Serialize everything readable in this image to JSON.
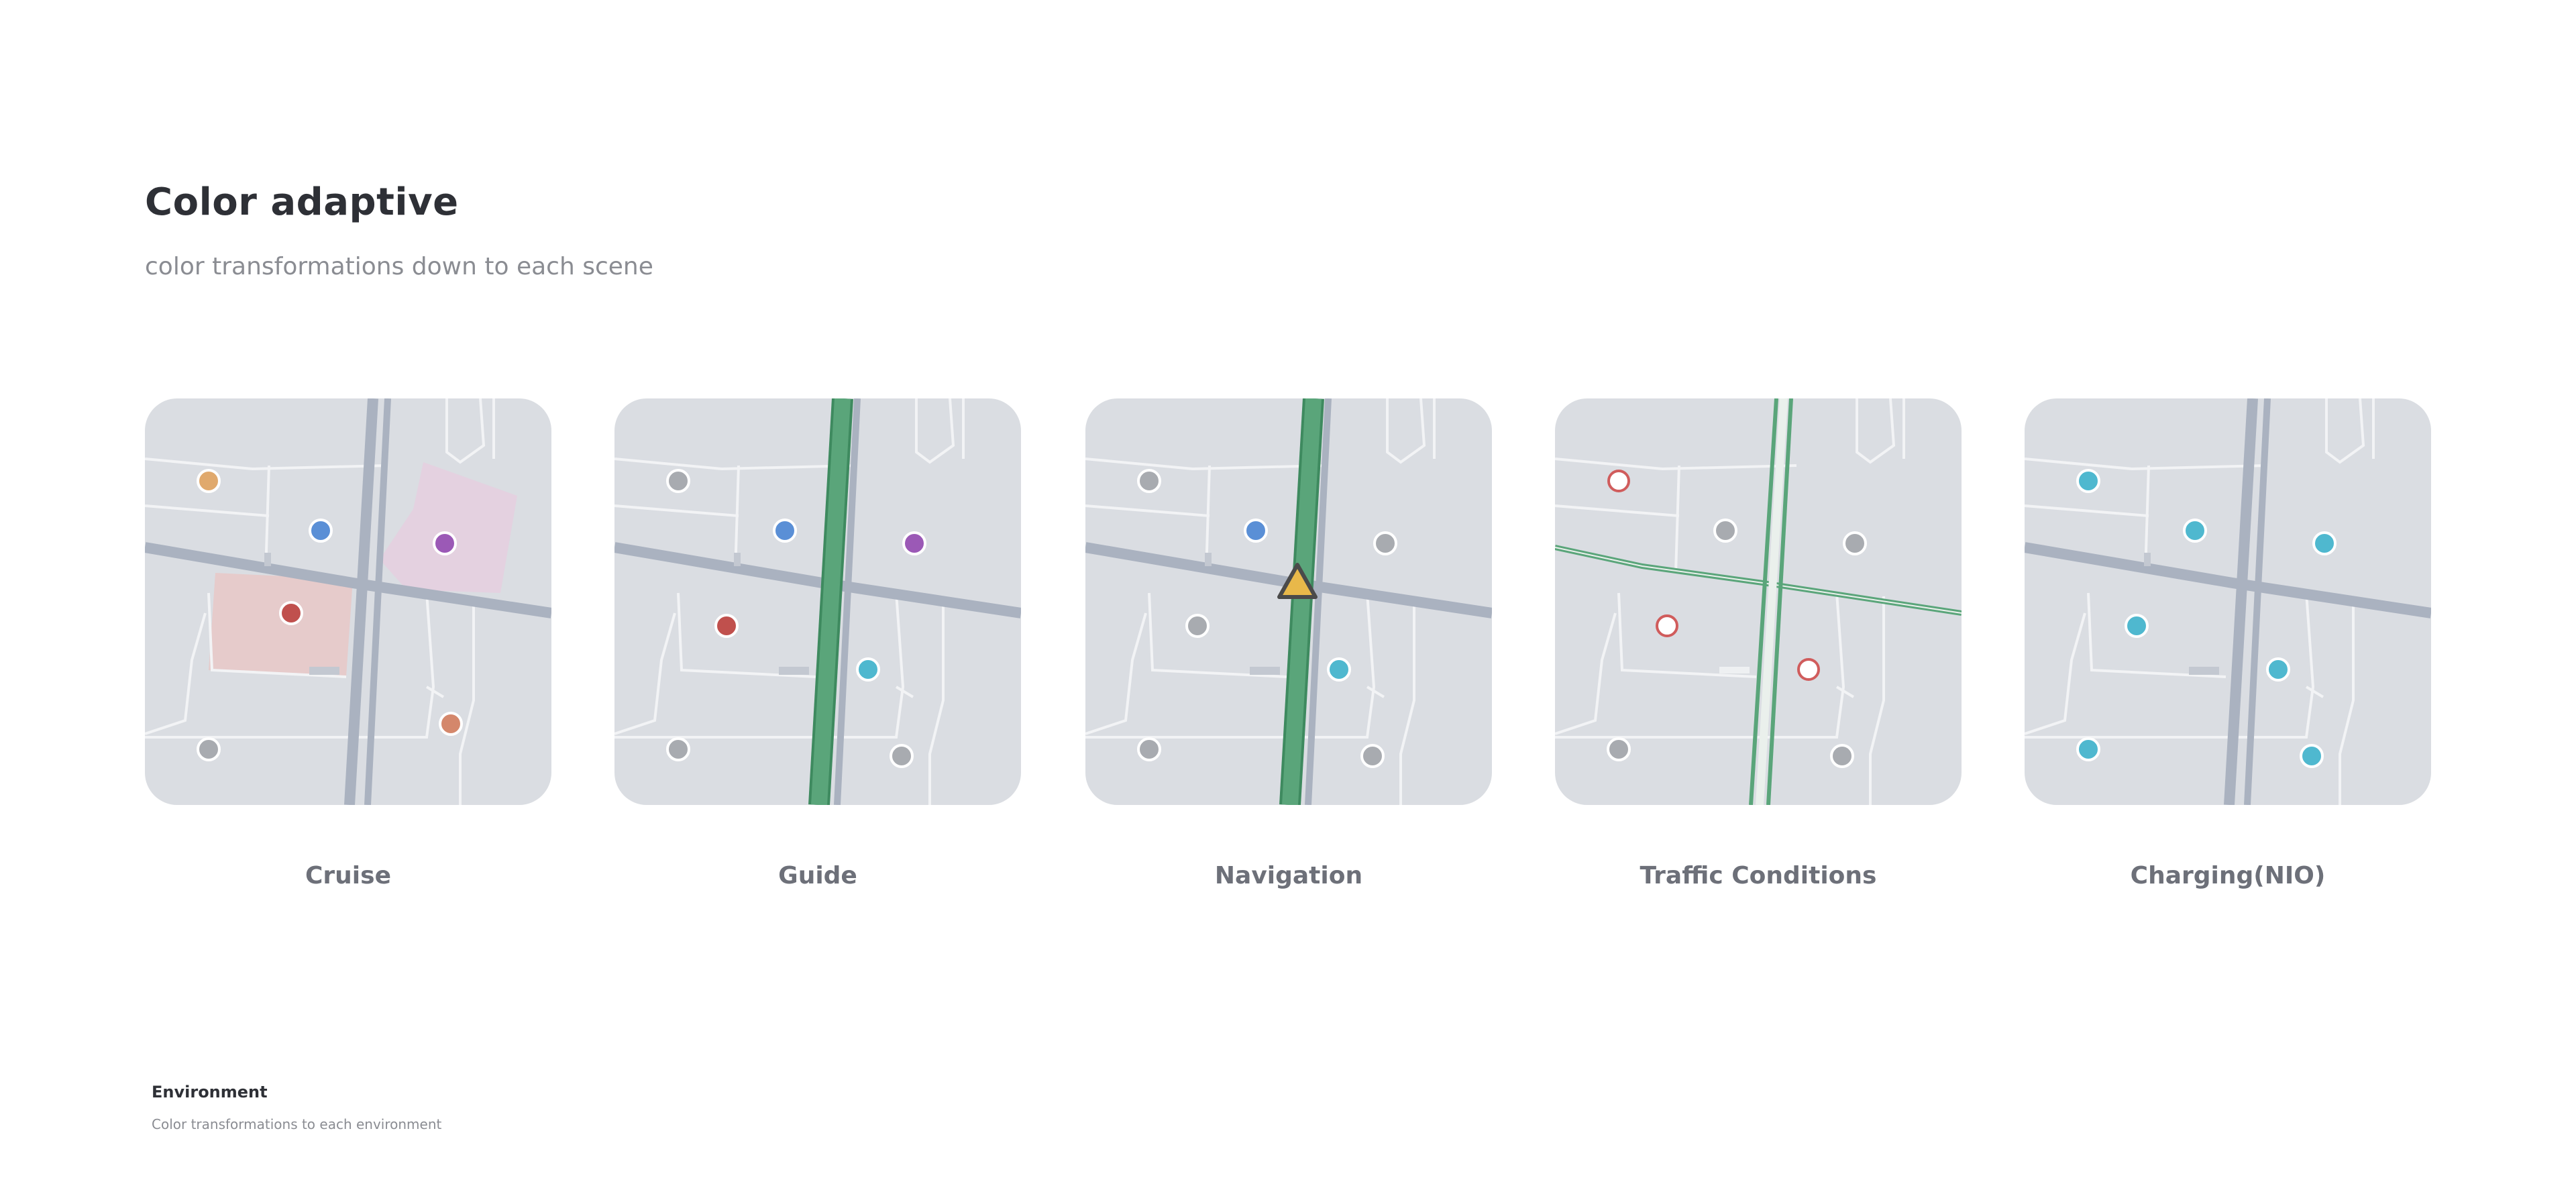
{
  "header": {
    "title": "Color adaptive",
    "subtitle": "color transformations down to each scene"
  },
  "scenes": [
    {
      "label": "Cruise",
      "highlight": "zones",
      "poi_style": "category",
      "poi_colors": [
        "#e0a96d",
        "#5a8fd6",
        "#9b59b6",
        "#c0504d",
        "#a8abb0",
        "#d4876b"
      ]
    },
    {
      "label": "Guide",
      "highlight": "route",
      "poi_style": "category",
      "poi_colors": [
        "#a8abb0",
        "#5a8fd6",
        "#9b59b6",
        "#c0504d",
        "#4fb8cf",
        "#a8abb0",
        "#a8abb0"
      ]
    },
    {
      "label": "Navigation",
      "highlight": "route-with-vehicle",
      "poi_style": "muted",
      "poi_colors": [
        "#a8abb0",
        "#5a8fd6",
        "#a8abb0",
        "#a8abb0",
        "#4fb8cf",
        "#a8abb0",
        "#a8abb0"
      ]
    },
    {
      "label": "Traffic Conditions",
      "highlight": "traffic-lines",
      "poi_style": "incident-rings",
      "poi_colors": [
        "#d05c5c",
        "#a8abb0",
        "#a8abb0",
        "#d05c5c",
        "#d05c5c",
        "#a8abb0",
        "#a8abb0"
      ]
    },
    {
      "label": "Charging(NIO)",
      "highlight": "none",
      "poi_style": "charging",
      "poi_colors": [
        "#4fb8cf",
        "#4fb8cf",
        "#4fb8cf",
        "#4fb8cf",
        "#4fb8cf",
        "#4fb8cf",
        "#4fb8cf"
      ]
    }
  ],
  "colors": {
    "map_background": "#dadde2",
    "road_main": "#aab2c0",
    "road_minor": "#f2f3f5",
    "route_green": "#5aa57a",
    "route_green_dark": "#3e8a5f",
    "vehicle_yellow": "#e8b84a",
    "zone_red": "#e7c9c9",
    "zone_purple": "#e4cfe0"
  },
  "footer": {
    "title": "Environment",
    "description": "Color transformations to each environment"
  }
}
